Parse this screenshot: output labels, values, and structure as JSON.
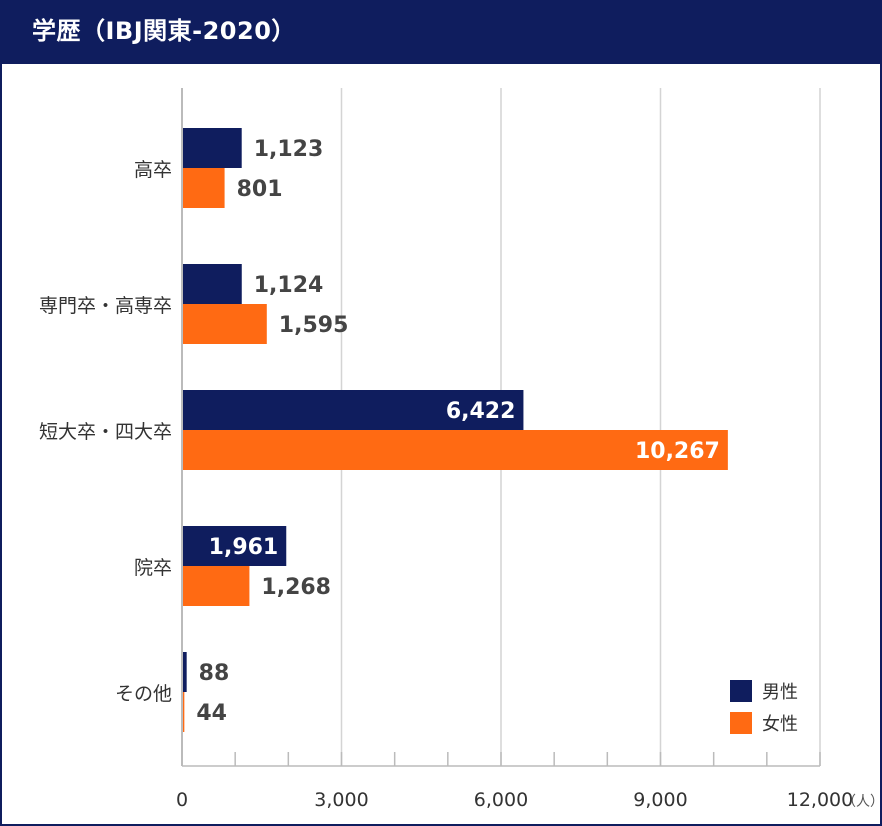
{
  "chart_data": {
    "type": "bar",
    "orientation": "horizontal",
    "title": "学歴（IBJ関東-2020）",
    "categories": [
      "高卒",
      "専門卒・高専卒",
      "短大卒・四大卒",
      "院卒",
      "その他"
    ],
    "series": [
      {
        "name": "男性",
        "color": "#0f1d5e",
        "values": [
          1123,
          1124,
          6422,
          1961,
          88
        ],
        "labels": [
          "1,123",
          "1,124",
          "6,422",
          "1,961",
          "88"
        ]
      },
      {
        "name": "女性",
        "color": "#ff6a13",
        "values": [
          801,
          1595,
          10267,
          1268,
          44
        ],
        "labels": [
          "801",
          "1,595",
          "10,267",
          "1,268",
          "44"
        ]
      }
    ],
    "xlim": [
      0,
      12000
    ],
    "x_ticks": [
      0,
      3000,
      6000,
      9000,
      12000
    ],
    "x_tick_labels": [
      "0",
      "3,000",
      "6,000",
      "9,000",
      "12,000"
    ],
    "x_unit": "（人）",
    "grid": true,
    "legend_position": "bottom-right"
  }
}
